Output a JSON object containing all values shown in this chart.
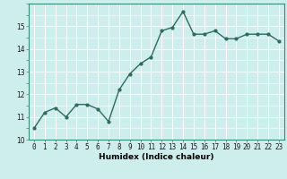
{
  "x": [
    0,
    1,
    2,
    3,
    4,
    5,
    6,
    7,
    8,
    9,
    10,
    11,
    12,
    13,
    14,
    15,
    16,
    17,
    18,
    19,
    20,
    21,
    22,
    23
  ],
  "y": [
    10.5,
    11.2,
    11.4,
    11.0,
    11.55,
    11.55,
    11.35,
    10.8,
    12.2,
    12.9,
    13.35,
    13.65,
    14.8,
    14.95,
    15.65,
    14.65,
    14.65,
    14.8,
    14.45,
    14.45,
    14.65,
    14.65,
    14.65,
    14.35
  ],
  "line_color": "#2e6b5e",
  "marker": "o",
  "markersize": 2,
  "linewidth": 1.0,
  "xlabel": "Humidex (Indice chaleur)",
  "xlim": [
    -0.5,
    23.5
  ],
  "ylim": [
    10,
    16
  ],
  "yticks": [
    10,
    11,
    12,
    13,
    14,
    15
  ],
  "xticks": [
    0,
    1,
    2,
    3,
    4,
    5,
    6,
    7,
    8,
    9,
    10,
    11,
    12,
    13,
    14,
    15,
    16,
    17,
    18,
    19,
    20,
    21,
    22,
    23
  ],
  "bg_color": "#cdeeed",
  "grid_color": "#ffffff",
  "tick_fontsize": 5.5,
  "xlabel_fontsize": 6.5,
  "spine_color": "#3d8a7a"
}
